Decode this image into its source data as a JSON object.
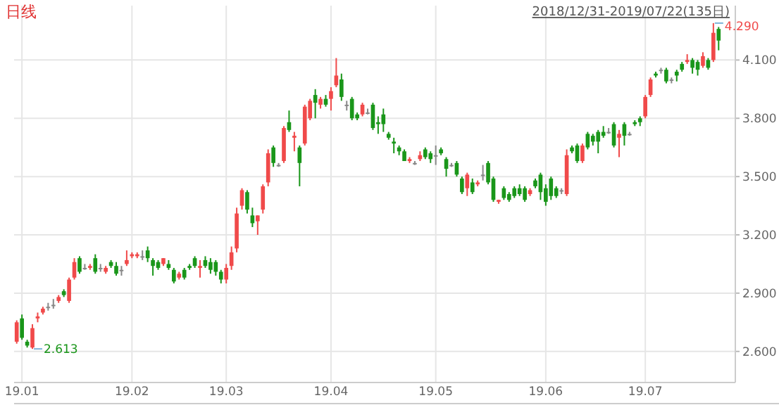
{
  "chart_data": {
    "type": "candlestick",
    "title": "日线",
    "subtitle": "2018/12/31-2019/07/22(135日)",
    "categories": [
      null,
      "19.01",
      null,
      null,
      null,
      null,
      null,
      null,
      null,
      null,
      null,
      null,
      null,
      null,
      null,
      null,
      null,
      null,
      null,
      null,
      null,
      null,
      "19.02",
      null,
      null,
      null,
      null,
      null,
      null,
      null,
      null,
      null,
      null,
      null,
      null,
      null,
      null,
      null,
      null,
      null,
      "19.03",
      null,
      null,
      null,
      null,
      null,
      null,
      null,
      null,
      null,
      null,
      null,
      null,
      null,
      null,
      null,
      null,
      null,
      null,
      null,
      "19.04",
      null,
      null,
      null,
      null,
      null,
      null,
      null,
      null,
      null,
      null,
      null,
      null,
      null,
      null,
      null,
      null,
      null,
      null,
      null,
      "19.05",
      null,
      null,
      null,
      null,
      null,
      null,
      null,
      null,
      null,
      null,
      null,
      null,
      null,
      null,
      null,
      null,
      null,
      null,
      null,
      null,
      "19.06",
      null,
      null,
      null,
      null,
      null,
      null,
      null,
      null,
      null,
      null,
      null,
      null,
      null,
      null,
      null,
      null,
      null,
      null,
      "19.07",
      null,
      null,
      null,
      null,
      null,
      null,
      null,
      null,
      null,
      null,
      null,
      null,
      null,
      null
    ],
    "ohlc": [
      [
        2.65,
        2.76,
        2.64,
        2.75
      ],
      [
        2.77,
        2.79,
        2.66,
        2.67
      ],
      [
        2.65,
        2.66,
        2.62,
        2.63
      ],
      [
        2.62,
        2.74,
        2.613,
        2.72
      ],
      [
        2.77,
        2.8,
        2.75,
        2.78
      ],
      [
        2.8,
        2.83,
        2.79,
        2.82
      ],
      [
        2.83,
        2.85,
        2.81,
        2.83
      ],
      [
        2.84,
        2.87,
        2.82,
        2.84
      ],
      [
        2.86,
        2.89,
        2.85,
        2.88
      ],
      [
        2.91,
        2.92,
        2.88,
        2.89
      ],
      [
        2.86,
        2.98,
        2.85,
        2.97
      ],
      [
        2.98,
        3.08,
        2.97,
        3.06
      ],
      [
        3.08,
        3.09,
        3.0,
        3.01
      ],
      [
        3.03,
        3.05,
        3.02,
        3.03
      ],
      [
        3.03,
        3.05,
        3.02,
        3.04
      ],
      [
        3.08,
        3.1,
        3.0,
        3.01
      ],
      [
        3.03,
        3.05,
        3.01,
        3.03
      ],
      [
        3.01,
        3.04,
        3.0,
        3.03
      ],
      [
        3.06,
        3.07,
        3.03,
        3.04
      ],
      [
        3.04,
        3.06,
        2.99,
        3.0
      ],
      [
        3.02,
        3.04,
        2.99,
        3.02
      ],
      [
        3.05,
        3.12,
        3.04,
        3.07
      ],
      [
        3.09,
        3.11,
        3.08,
        3.1
      ],
      [
        3.09,
        3.11,
        3.08,
        3.1
      ],
      [
        3.09,
        3.12,
        3.07,
        3.09
      ],
      [
        3.12,
        3.14,
        3.06,
        3.08
      ],
      [
        3.07,
        3.08,
        2.99,
        3.04
      ],
      [
        3.06,
        3.07,
        3.02,
        3.03
      ],
      [
        3.05,
        3.08,
        3.04,
        3.08
      ],
      [
        3.05,
        3.07,
        3.02,
        3.03
      ],
      [
        3.02,
        3.03,
        2.95,
        2.96
      ],
      [
        2.98,
        3.01,
        2.97,
        3.0
      ],
      [
        3.02,
        3.03,
        2.97,
        2.98
      ],
      [
        3.04,
        3.05,
        3.02,
        3.03
      ],
      [
        3.08,
        3.09,
        3.03,
        3.04
      ],
      [
        3.03,
        3.07,
        2.98,
        3.04
      ],
      [
        3.07,
        3.09,
        3.03,
        3.04
      ],
      [
        3.06,
        3.08,
        3.0,
        3.02
      ],
      [
        3.06,
        3.07,
        2.99,
        3.01
      ],
      [
        3.01,
        3.02,
        2.95,
        2.97
      ],
      [
        2.97,
        3.05,
        2.95,
        3.03
      ],
      [
        3.04,
        3.14,
        3.02,
        3.11
      ],
      [
        3.13,
        3.34,
        3.11,
        3.31
      ],
      [
        3.35,
        3.44,
        3.33,
        3.43
      ],
      [
        3.42,
        3.43,
        3.31,
        3.33
      ],
      [
        3.3,
        3.34,
        3.24,
        3.26
      ],
      [
        3.27,
        3.3,
        3.2,
        3.3
      ],
      [
        3.33,
        3.46,
        3.31,
        3.45
      ],
      [
        3.47,
        3.64,
        3.45,
        3.62
      ],
      [
        3.65,
        3.66,
        3.55,
        3.57
      ],
      [
        3.56,
        3.57,
        3.55,
        3.56
      ],
      [
        3.58,
        3.76,
        3.57,
        3.75
      ],
      [
        3.78,
        3.84,
        3.73,
        3.74
      ],
      [
        3.7,
        3.73,
        3.63,
        3.71
      ],
      [
        3.65,
        3.66,
        3.45,
        3.57
      ],
      [
        3.67,
        3.87,
        3.66,
        3.86
      ],
      [
        3.8,
        3.9,
        3.79,
        3.89
      ],
      [
        3.92,
        3.95,
        3.8,
        3.88
      ],
      [
        3.87,
        3.91,
        3.85,
        3.9
      ],
      [
        3.9,
        3.92,
        3.86,
        3.87
      ],
      [
        3.9,
        3.96,
        3.84,
        3.94
      ],
      [
        3.97,
        4.11,
        3.96,
        4.02
      ],
      [
        4.0,
        4.03,
        3.89,
        3.91
      ],
      [
        3.87,
        3.89,
        3.84,
        3.87
      ],
      [
        3.9,
        3.91,
        3.79,
        3.8
      ],
      [
        3.82,
        3.83,
        3.79,
        3.8
      ],
      [
        3.82,
        3.88,
        3.81,
        3.87
      ],
      [
        3.83,
        3.85,
        3.82,
        3.83
      ],
      [
        3.87,
        3.88,
        3.74,
        3.75
      ],
      [
        3.78,
        3.81,
        3.72,
        3.77
      ],
      [
        3.82,
        3.85,
        3.73,
        3.77
      ],
      [
        3.72,
        3.73,
        3.69,
        3.7
      ],
      [
        3.68,
        3.7,
        3.62,
        3.67
      ],
      [
        3.65,
        3.66,
        3.61,
        3.63
      ],
      [
        3.63,
        3.64,
        3.58,
        3.58
      ],
      [
        3.58,
        3.6,
        3.57,
        3.59
      ],
      [
        3.57,
        3.58,
        3.56,
        3.57
      ],
      [
        3.59,
        3.63,
        3.58,
        3.61
      ],
      [
        3.64,
        3.65,
        3.59,
        3.6
      ],
      [
        3.62,
        3.63,
        3.57,
        3.59
      ],
      [
        3.61,
        3.66,
        3.56,
        3.61
      ],
      [
        3.64,
        3.65,
        3.61,
        3.62
      ],
      [
        3.59,
        3.6,
        3.5,
        3.54
      ],
      [
        3.56,
        3.57,
        3.55,
        3.56
      ],
      [
        3.57,
        3.58,
        3.5,
        3.51
      ],
      [
        3.49,
        3.5,
        3.41,
        3.42
      ],
      [
        3.44,
        3.52,
        3.4,
        3.51
      ],
      [
        3.47,
        3.49,
        3.41,
        3.42
      ],
      [
        3.46,
        3.48,
        3.45,
        3.47
      ],
      [
        3.51,
        3.56,
        3.48,
        3.51
      ],
      [
        3.57,
        3.58,
        3.46,
        3.47
      ],
      [
        3.49,
        3.5,
        3.37,
        3.38
      ],
      [
        3.37,
        3.38,
        3.36,
        3.38
      ],
      [
        3.44,
        3.45,
        3.38,
        3.39
      ],
      [
        3.41,
        3.42,
        3.37,
        3.38
      ],
      [
        3.44,
        3.45,
        3.39,
        3.4
      ],
      [
        3.44,
        3.46,
        3.4,
        3.41
      ],
      [
        3.44,
        3.45,
        3.37,
        3.38
      ],
      [
        3.41,
        3.44,
        3.4,
        3.43
      ],
      [
        3.48,
        3.49,
        3.44,
        3.45
      ],
      [
        3.51,
        3.52,
        3.38,
        3.42
      ],
      [
        3.44,
        3.46,
        3.35,
        3.37
      ],
      [
        3.49,
        3.5,
        3.38,
        3.4
      ],
      [
        3.44,
        3.45,
        3.39,
        3.4
      ],
      [
        3.43,
        3.44,
        3.41,
        3.43
      ],
      [
        3.41,
        3.64,
        3.4,
        3.61
      ],
      [
        3.65,
        3.66,
        3.62,
        3.63
      ],
      [
        3.66,
        3.67,
        3.57,
        3.58
      ],
      [
        3.58,
        3.67,
        3.57,
        3.66
      ],
      [
        3.72,
        3.73,
        3.64,
        3.65
      ],
      [
        3.71,
        3.72,
        3.66,
        3.68
      ],
      [
        3.73,
        3.74,
        3.62,
        3.68
      ],
      [
        3.73,
        3.76,
        3.7,
        3.71
      ],
      [
        3.73,
        3.75,
        3.72,
        3.73
      ],
      [
        3.77,
        3.78,
        3.65,
        3.66
      ],
      [
        3.7,
        3.74,
        3.6,
        3.72
      ],
      [
        3.77,
        3.78,
        3.66,
        3.71
      ],
      [
        3.72,
        3.73,
        3.71,
        3.72
      ],
      [
        3.78,
        3.79,
        3.76,
        3.77
      ],
      [
        3.8,
        3.81,
        3.76,
        3.78
      ],
      [
        3.81,
        3.92,
        3.8,
        3.91
      ],
      [
        3.92,
        4.01,
        3.91,
        4.0
      ],
      [
        4.03,
        4.04,
        4.01,
        4.02
      ],
      [
        4.05,
        4.06,
        4.03,
        4.05
      ],
      [
        4.05,
        4.06,
        3.98,
        3.99
      ],
      [
        4.0,
        4.01,
        3.98,
        4.0
      ],
      [
        4.04,
        4.05,
        3.99,
        4.02
      ],
      [
        4.08,
        4.09,
        4.04,
        4.05
      ],
      [
        4.09,
        4.13,
        4.08,
        4.1
      ],
      [
        4.1,
        4.11,
        4.03,
        4.06
      ],
      [
        4.09,
        4.1,
        4.02,
        4.05
      ],
      [
        4.07,
        4.14,
        4.06,
        4.12
      ],
      [
        4.1,
        4.11,
        4.05,
        4.06
      ],
      [
        4.1,
        4.29,
        4.09,
        4.24
      ],
      [
        4.26,
        4.27,
        4.15,
        4.2
      ]
    ],
    "colors": [
      "#f04a4a",
      "#1a961a",
      "#1a961a",
      "#f04a4a",
      "#f04a4a",
      "#f04a4a",
      "#888888",
      "#888888",
      "#f04a4a",
      "#1a961a",
      "#f04a4a",
      "#f04a4a",
      "#1a961a",
      "#888888",
      "#f04a4a",
      "#1a961a",
      "#888888",
      "#f04a4a",
      "#1a961a",
      "#1a961a",
      "#888888",
      "#f04a4a",
      "#f04a4a",
      "#f04a4a",
      "#888888",
      "#1a961a",
      "#1a961a",
      "#1a961a",
      "#f04a4a",
      "#1a961a",
      "#1a961a",
      "#f04a4a",
      "#1a961a",
      "#1a961a",
      "#1a961a",
      "#f04a4a",
      "#1a961a",
      "#1a961a",
      "#1a961a",
      "#1a961a",
      "#f04a4a",
      "#f04a4a",
      "#f04a4a",
      "#f04a4a",
      "#1a961a",
      "#1a961a",
      "#f04a4a",
      "#f04a4a",
      "#f04a4a",
      "#1a961a",
      "#888888",
      "#f04a4a",
      "#1a961a",
      "#f04a4a",
      "#1a961a",
      "#f04a4a",
      "#f04a4a",
      "#1a961a",
      "#f04a4a",
      "#1a961a",
      "#f04a4a",
      "#f04a4a",
      "#1a961a",
      "#888888",
      "#1a961a",
      "#1a961a",
      "#f04a4a",
      "#888888",
      "#1a961a",
      "#1a961a",
      "#1a961a",
      "#1a961a",
      "#1a961a",
      "#1a961a",
      "#1a961a",
      "#f04a4a",
      "#888888",
      "#f04a4a",
      "#1a961a",
      "#1a961a",
      "#888888",
      "#1a961a",
      "#1a961a",
      "#888888",
      "#1a961a",
      "#1a961a",
      "#f04a4a",
      "#1a961a",
      "#f04a4a",
      "#888888",
      "#1a961a",
      "#1a961a",
      "#f04a4a",
      "#1a961a",
      "#1a961a",
      "#1a961a",
      "#1a961a",
      "#1a961a",
      "#f04a4a",
      "#1a961a",
      "#1a961a",
      "#1a961a",
      "#1a961a",
      "#1a961a",
      "#888888",
      "#f04a4a",
      "#1a961a",
      "#1a961a",
      "#f04a4a",
      "#1a961a",
      "#1a961a",
      "#1a961a",
      "#1a961a",
      "#888888",
      "#1a961a",
      "#f04a4a",
      "#1a961a",
      "#888888",
      "#1a961a",
      "#1a961a",
      "#f04a4a",
      "#f04a4a",
      "#1a961a",
      "#888888",
      "#1a961a",
      "#888888",
      "#1a961a",
      "#1a961a",
      "#f04a4a",
      "#1a961a",
      "#1a961a",
      "#f04a4a",
      "#1a961a",
      "#f04a4a",
      "#1a961a"
    ],
    "ylim": [
      2.44,
      4.38
    ],
    "yticks": [
      {
        "value": 2.6,
        "label": "2.600"
      },
      {
        "value": 2.9,
        "label": "2.900"
      },
      {
        "value": 3.2,
        "label": "3.200"
      },
      {
        "value": 3.5,
        "label": "3.500"
      },
      {
        "value": 3.8,
        "label": "3.800"
      },
      {
        "value": 4.1,
        "label": "4.100"
      }
    ],
    "grid": true,
    "annotations": [
      "2.613",
      "4.290"
    ]
  }
}
